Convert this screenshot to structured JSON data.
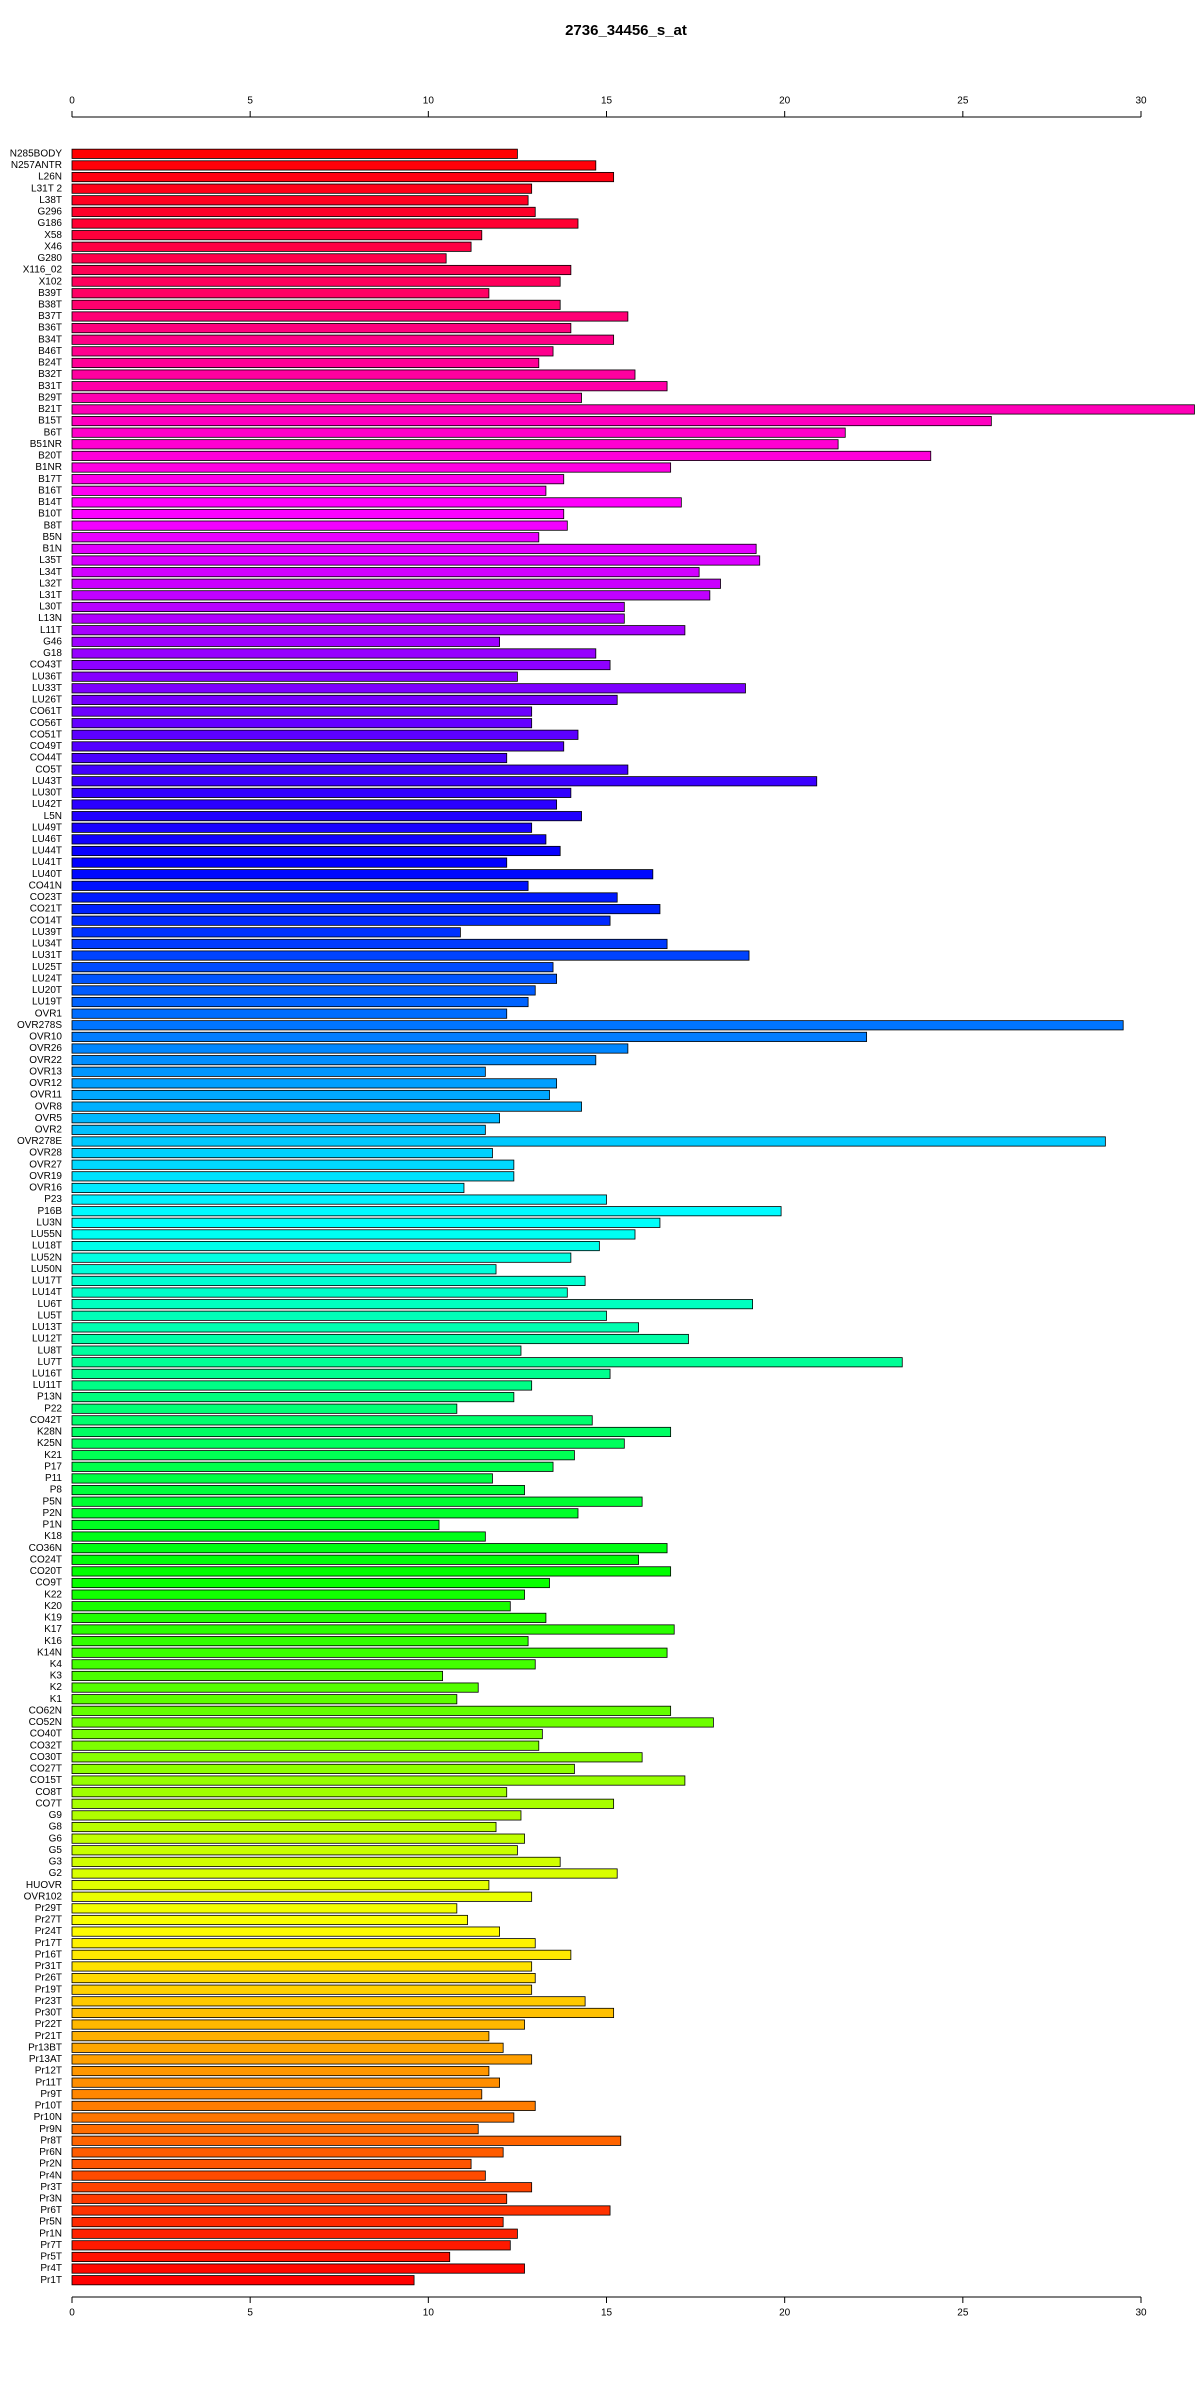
{
  "chart_data": {
    "type": "bar",
    "orientation": "horizontal",
    "title": "2736_34456_s_at",
    "categories": [
      "N285BODY",
      "N257ANTR",
      "L26N",
      "L31T 2",
      "L38T",
      "G296",
      "G186",
      "X58",
      "X46",
      "G280",
      "X116_02",
      "X102",
      "B39T",
      "B38T",
      "B37T",
      "B36T",
      "B34T",
      "B46T",
      "B24T",
      "B32T",
      "B31T",
      "B29T",
      "B21T",
      "B15T",
      "B6T",
      "B51NR",
      "B20T",
      "B1NR",
      "B17T",
      "B16T",
      "B14T",
      "B10T",
      "B8T",
      "B5N",
      "B1N",
      "L35T",
      "L34T",
      "L32T",
      "L31T",
      "L30T",
      "L13N",
      "L11T",
      "G46",
      "G18",
      "CO43T",
      "LU36T",
      "LU33T",
      "LU26T",
      "CO61T",
      "CO56T",
      "CO51T",
      "CO49T",
      "CO44T",
      "CO5T",
      "LU43T",
      "LU30T",
      "LU42T",
      "L5N",
      "LU49T",
      "LU46T",
      "LU44T",
      "LU41T",
      "LU40T",
      "CO41N",
      "CO23T",
      "CO21T",
      "CO14T",
      "LU39T",
      "LU34T",
      "LU31T",
      "LU25T",
      "LU24T",
      "LU20T",
      "LU19T",
      "OVR1",
      "OVR278S",
      "OVR10",
      "OVR26",
      "OVR22",
      "OVR13",
      "OVR12",
      "OVR11",
      "OVR8",
      "OVR5",
      "OVR2",
      "OVR278E",
      "OVR28",
      "OVR27",
      "OVR19",
      "OVR16",
      "P23",
      "P16B",
      "LU3N",
      "LU55N",
      "LU18T",
      "LU52N",
      "LU50N",
      "LU17T",
      "LU14T",
      "LU6T",
      "LU5T",
      "LU13T",
      "LU12T",
      "LU8T",
      "LU7T",
      "LU16T",
      "LU11T",
      "P13N",
      "P22",
      "CO42T",
      "K28N",
      "K25N",
      "K21",
      "P17",
      "P11",
      "P8",
      "P5N",
      "P2N",
      "P1N",
      "K18",
      "CO36N",
      "CO24T",
      "CO20T",
      "CO9T",
      "K22",
      "K20",
      "K19",
      "K17",
      "K16",
      "K14N",
      "K4",
      "K3",
      "K2",
      "K1",
      "CO62N",
      "CO52N",
      "CO40T",
      "CO32T",
      "CO30T",
      "CO27T",
      "CO15T",
      "CO8T",
      "CO7T",
      "G9",
      "G8",
      "G6",
      "G5",
      "G3",
      "G2",
      "HUOVR",
      "OVR102",
      "Pr29T",
      "Pr27T",
      "Pr24T",
      "Pr17T",
      "Pr16T",
      "Pr31T",
      "Pr26T",
      "Pr19T",
      "Pr23T",
      "Pr30T",
      "Pr22T",
      "Pr21T",
      "Pr13BT",
      "Pr13AT",
      "Pr12T",
      "Pr11T",
      "Pr9T",
      "Pr10T",
      "Pr10N",
      "Pr9N",
      "Pr8T",
      "Pr6N",
      "Pr2N",
      "Pr4N",
      "Pr3T",
      "Pr3N",
      "Pr6T",
      "Pr5N",
      "Pr1N",
      "Pr7T",
      "Pr5T",
      "Pr4T",
      "Pr1T"
    ],
    "values": [
      12.5,
      14.7,
      15.2,
      12.9,
      12.8,
      13.0,
      14.2,
      11.5,
      11.2,
      10.5,
      14.0,
      13.7,
      11.7,
      13.7,
      15.6,
      14.0,
      15.2,
      13.5,
      13.1,
      15.8,
      16.7,
      14.3,
      31.5,
      25.8,
      21.7,
      21.5,
      24.1,
      16.8,
      13.8,
      13.3,
      17.1,
      13.8,
      13.9,
      13.1,
      19.2,
      19.3,
      17.6,
      18.2,
      17.9,
      15.5,
      15.5,
      17.2,
      12.0,
      14.7,
      15.1,
      12.5,
      18.9,
      15.3,
      12.9,
      12.9,
      14.2,
      13.8,
      12.2,
      15.6,
      20.9,
      14.0,
      13.6,
      14.3,
      12.9,
      13.3,
      13.7,
      12.2,
      16.3,
      12.8,
      15.3,
      16.5,
      15.1,
      10.9,
      16.7,
      19.0,
      13.5,
      13.6,
      13.0,
      12.8,
      12.2,
      29.5,
      22.3,
      15.6,
      14.7,
      11.6,
      13.6,
      13.4,
      14.3,
      12.0,
      11.6,
      29.0,
      11.8,
      12.4,
      12.4,
      11.0,
      15.0,
      19.9,
      16.5,
      15.8,
      14.8,
      14.0,
      11.9,
      14.4,
      13.9,
      19.1,
      15.0,
      15.9,
      17.3,
      12.6,
      23.3,
      15.1,
      12.9,
      12.4,
      10.8,
      14.6,
      16.8,
      15.5,
      14.1,
      13.5,
      11.8,
      12.7,
      16.0,
      14.2,
      10.3,
      11.6,
      16.7,
      15.9,
      16.8,
      13.4,
      12.7,
      12.3,
      13.3,
      16.9,
      12.8,
      16.7,
      13.0,
      10.4,
      11.4,
      10.8,
      16.8,
      18.0,
      13.2,
      13.1,
      16.0,
      14.1,
      17.2,
      12.2,
      15.2,
      12.6,
      11.9,
      12.7,
      12.5,
      13.7,
      15.3,
      11.7,
      12.9,
      10.8,
      11.1,
      12.0,
      13.0,
      14.0,
      12.9,
      13.0,
      12.9,
      14.4,
      15.2,
      12.7,
      11.7,
      12.1,
      12.9,
      11.7,
      12.0,
      11.5,
      13.0,
      12.4,
      11.4,
      15.4,
      12.1,
      11.2,
      11.6,
      12.9,
      12.2,
      15.1,
      12.1,
      12.5,
      12.3,
      10.6,
      12.7,
      9.6
    ],
    "palette": [
      "#ff0000",
      "#ff00ff",
      "#0000ff",
      "#00ffff",
      "#00ff00",
      "#ffff00",
      "#ff0000"
    ],
    "xlim": [
      0,
      30
    ],
    "xticks": [
      0,
      5,
      10,
      15,
      20,
      25,
      30
    ]
  }
}
